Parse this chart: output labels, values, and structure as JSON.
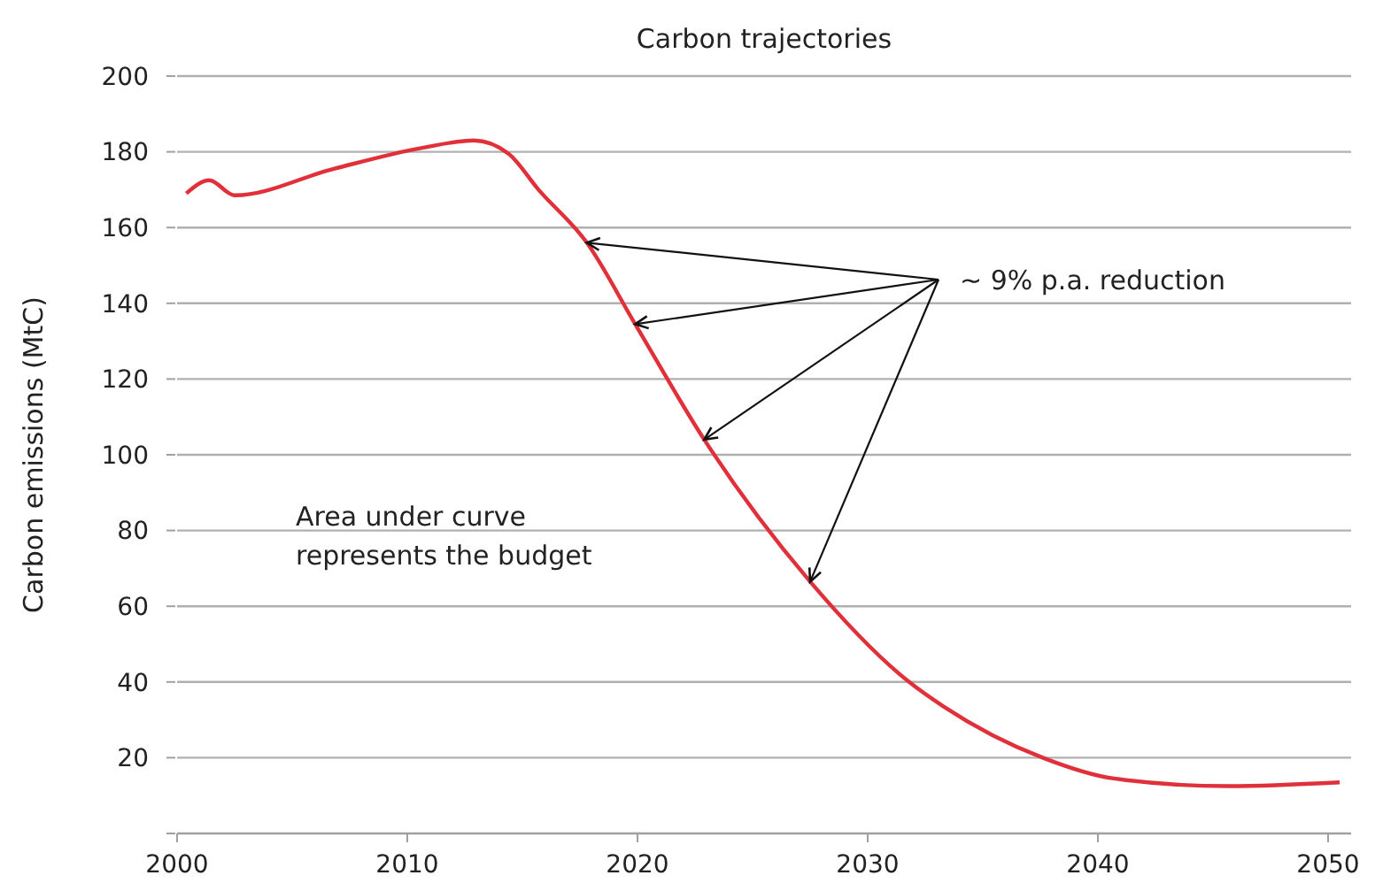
{
  "chart_data": {
    "type": "line",
    "title": "Carbon trajectories",
    "ylabel": "Carbon emissions (MtC)",
    "annotations": [
      {
        "text": "~ 9% p.a. reduction",
        "x": 2017.8,
        "y": 156
      },
      "Area under curve\nrepresents the budget"
    ],
    "xlim": [
      2000,
      2051
    ],
    "xticks": [
      2000,
      2010,
      2020,
      2030,
      2040,
      2050
    ],
    "ylim": [
      0,
      200
    ],
    "yticks": [
      {
        "value": 0,
        "label": null
      },
      20,
      40,
      60,
      80,
      100,
      120,
      140,
      160,
      180,
      200
    ],
    "grid": "y",
    "line_style": "solid",
    "marker": "none",
    "series": [
      {
        "color": "#e0303a",
        "x": [
          2000.4,
          2001.4,
          2002.5,
          2006.8,
          2010.6,
          2012.9,
          2014.4,
          2015.7,
          2017.8,
          2019.9,
          2022.9,
          2027.5,
          2031.8,
          2033.3,
          2037.6,
          2040.7,
          2045.7,
          2050.5
        ],
        "values": [
          169,
          172.5,
          168.5,
          175.5,
          181,
          183,
          179.5,
          170,
          156,
          134.5,
          104,
          66.5,
          40,
          33.5,
          20,
          14.5,
          12.5,
          13.5
        ]
      }
    ]
  }
}
